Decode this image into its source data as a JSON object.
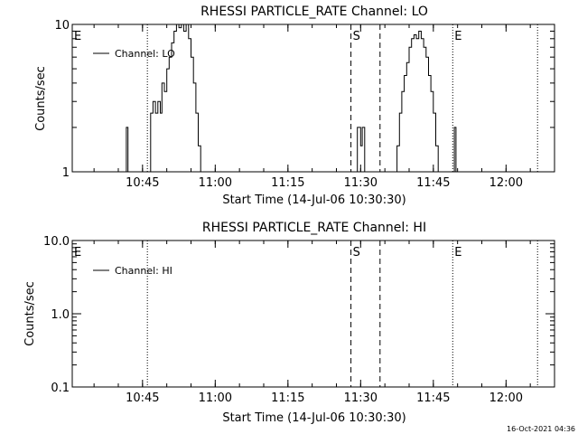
{
  "chart_data": [
    {
      "type": "line",
      "title": "RHESSI PARTICLE_RATE Channel: LO",
      "xlabel": "Start Time (14-Jul-06 10:30:30)",
      "ylabel": "Counts/sec",
      "yscale": "log",
      "xlim": [
        "10:30:30",
        "12:10:00"
      ],
      "ylim": [
        1,
        10
      ],
      "x_ticks": [
        "10:45",
        "11:00",
        "11:15",
        "11:30",
        "11:45",
        "12:00"
      ],
      "y_ticks": [
        "1",
        "10"
      ],
      "legend": {
        "placement": "top-left",
        "entries": [
          "Channel: LO"
        ]
      },
      "markers": [
        {
          "label": "E",
          "time": "10:30:30",
          "style": "dotted"
        },
        {
          "label": "",
          "time": "10:46:00",
          "style": "dotted"
        },
        {
          "label": "S",
          "time": "11:28:00",
          "style": "dashed"
        },
        {
          "label": "",
          "time": "11:34:00",
          "style": "dashed"
        },
        {
          "label": "E",
          "time": "11:49:00",
          "style": "dotted"
        },
        {
          "label": "",
          "time": "12:06:30",
          "style": "dotted"
        }
      ],
      "series": [
        {
          "name": "Channel: LO",
          "points": [
            [
              "10:41:20",
              1
            ],
            [
              "10:41:40",
              2
            ],
            [
              "10:42:00",
              1
            ],
            [
              "10:46:20",
              1
            ],
            [
              "10:46:40",
              2.5
            ],
            [
              "10:47:10",
              3
            ],
            [
              "10:47:40",
              2.5
            ],
            [
              "10:48:10",
              3
            ],
            [
              "10:48:40",
              2.5
            ],
            [
              "10:49:00",
              4
            ],
            [
              "10:49:30",
              3.5
            ],
            [
              "10:50:00",
              5
            ],
            [
              "10:50:30",
              6
            ],
            [
              "10:51:00",
              7.5
            ],
            [
              "10:51:30",
              9
            ],
            [
              "10:52:00",
              10
            ],
            [
              "10:52:30",
              9.5
            ],
            [
              "10:53:00",
              10
            ],
            [
              "10:53:30",
              9
            ],
            [
              "10:54:00",
              10
            ],
            [
              "10:54:30",
              8
            ],
            [
              "10:55:00",
              6
            ],
            [
              "10:55:30",
              4
            ],
            [
              "10:56:00",
              2.5
            ],
            [
              "10:56:30",
              1.5
            ],
            [
              "10:57:00",
              1
            ],
            [
              "11:29:00",
              1
            ],
            [
              "11:29:20",
              2
            ],
            [
              "11:30:00",
              1.5
            ],
            [
              "11:30:20",
              2
            ],
            [
              "11:30:50",
              1
            ],
            [
              "11:37:00",
              1
            ],
            [
              "11:37:30",
              1.5
            ],
            [
              "11:38:00",
              2.5
            ],
            [
              "11:38:30",
              3.5
            ],
            [
              "11:39:00",
              4.5
            ],
            [
              "11:39:30",
              5.5
            ],
            [
              "11:40:00",
              7
            ],
            [
              "11:40:30",
              8
            ],
            [
              "11:41:00",
              8.5
            ],
            [
              "11:41:30",
              8
            ],
            [
              "11:42:00",
              9
            ],
            [
              "11:42:30",
              8
            ],
            [
              "11:43:00",
              7
            ],
            [
              "11:43:30",
              6
            ],
            [
              "11:44:00",
              4.5
            ],
            [
              "11:44:30",
              3.5
            ],
            [
              "11:45:00",
              2.5
            ],
            [
              "11:45:30",
              1.5
            ],
            [
              "11:46:00",
              1
            ],
            [
              "11:49:00",
              1
            ],
            [
              "11:49:20",
              2
            ],
            [
              "11:49:40",
              1
            ]
          ]
        }
      ]
    },
    {
      "type": "line",
      "title": "RHESSI PARTICLE_RATE Channel: HI",
      "xlabel": "Start Time (14-Jul-06 10:30:30)",
      "ylabel": "Counts/sec",
      "yscale": "log",
      "xlim": [
        "10:30:30",
        "12:10:00"
      ],
      "ylim": [
        0.1,
        10
      ],
      "x_ticks": [
        "10:45",
        "11:00",
        "11:15",
        "11:30",
        "11:45",
        "12:00"
      ],
      "y_ticks": [
        "0.1",
        "1.0",
        "10.0"
      ],
      "legend": {
        "placement": "top-left",
        "entries": [
          "Channel: HI"
        ]
      },
      "markers": [
        {
          "label": "E",
          "time": "10:30:30",
          "style": "dotted"
        },
        {
          "label": "",
          "time": "10:46:00",
          "style": "dotted"
        },
        {
          "label": "S",
          "time": "11:28:00",
          "style": "dashed"
        },
        {
          "label": "",
          "time": "11:34:00",
          "style": "dashed"
        },
        {
          "label": "E",
          "time": "11:49:00",
          "style": "dotted"
        },
        {
          "label": "",
          "time": "12:06:30",
          "style": "dotted"
        }
      ],
      "series": [
        {
          "name": "Channel: HI",
          "points": []
        }
      ]
    }
  ],
  "footer": {
    "timestamp": "16-Oct-2021 04:36"
  }
}
